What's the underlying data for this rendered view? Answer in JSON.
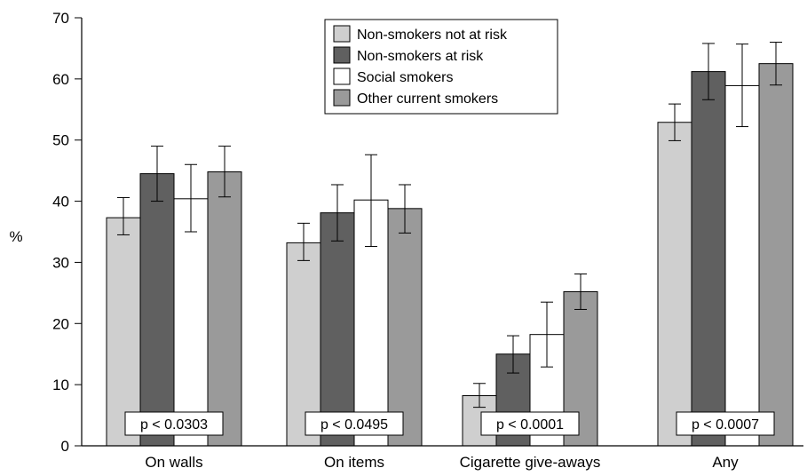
{
  "chart_data": {
    "type": "bar",
    "ylabel": "%",
    "xlabel": "",
    "ylim": [
      0,
      70
    ],
    "yticks": [
      0,
      10,
      20,
      30,
      40,
      50,
      60,
      70
    ],
    "grid": false,
    "legend_position": "top-center",
    "categories": [
      "On walls",
      "On items",
      "Cigarette give-aways",
      "Any"
    ],
    "annotations": [
      "p < 0.0303",
      "p < 0.0495",
      "p < 0.0001",
      "p < 0.0007"
    ],
    "series": [
      {
        "name": "Non-smokers not at risk",
        "color": "#cfcfcf",
        "values": [
          37.3,
          33.2,
          8.2,
          52.9
        ],
        "err_low": [
          34.5,
          30.3,
          6.3,
          49.9
        ],
        "err_high": [
          40.6,
          36.4,
          10.2,
          55.9
        ]
      },
      {
        "name": "Non-smokers at risk",
        "color": "#606060",
        "values": [
          44.5,
          38.1,
          15.0,
          61.2
        ],
        "err_low": [
          40.0,
          33.5,
          11.9,
          56.6
        ],
        "err_high": [
          49.0,
          42.7,
          18.0,
          65.8
        ]
      },
      {
        "name": "Social smokers",
        "color": "#ffffff",
        "values": [
          40.4,
          40.2,
          18.2,
          58.9
        ],
        "err_low": [
          35.0,
          32.6,
          12.9,
          52.2
        ],
        "err_high": [
          46.0,
          47.6,
          23.5,
          65.7
        ]
      },
      {
        "name": "Other current smokers",
        "color": "#9a9a9a",
        "values": [
          44.8,
          38.8,
          25.2,
          62.5
        ],
        "err_low": [
          40.7,
          34.8,
          22.3,
          59.0
        ],
        "err_high": [
          49.0,
          42.7,
          28.1,
          66.0
        ]
      }
    ]
  }
}
